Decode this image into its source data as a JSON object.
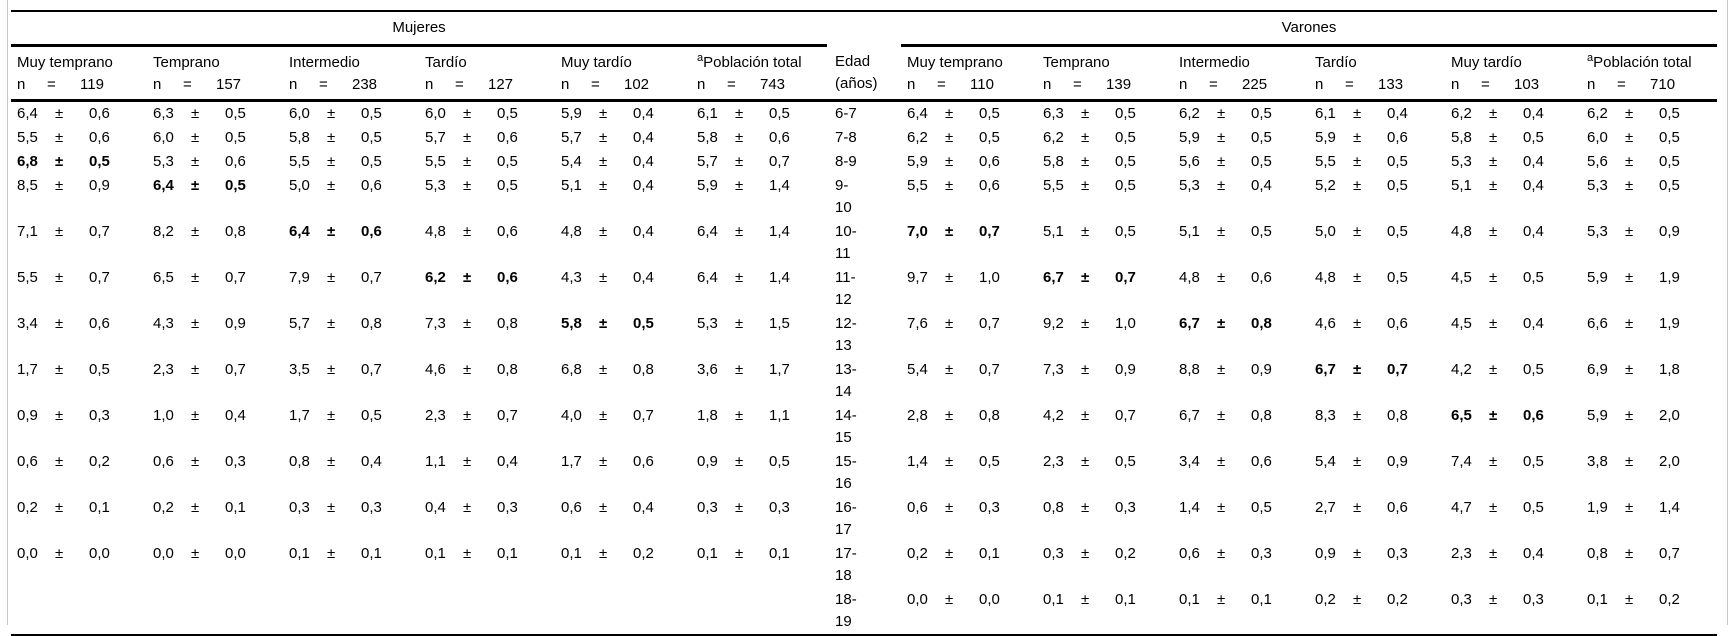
{
  "colors": {
    "text": "#000000",
    "background": "#ffffff",
    "rule": "#000000",
    "frame": "#c9c9c9"
  },
  "table": {
    "n_label": "n",
    "eq_label": "=",
    "pm_sign": "±",
    "groups": [
      {
        "label": "Mujeres"
      },
      {
        "label": "Varones"
      }
    ],
    "edad_header": {
      "line1": "Edad",
      "line2": "(años)"
    },
    "columns": [
      {
        "group": "mujeres",
        "sup": "",
        "name": "Muy temprano",
        "n": "119"
      },
      {
        "group": "mujeres",
        "sup": "",
        "name": "Temprano",
        "n": "157"
      },
      {
        "group": "mujeres",
        "sup": "",
        "name": "Intermedio",
        "n": "238"
      },
      {
        "group": "mujeres",
        "sup": "",
        "name": "Tardío",
        "n": "127"
      },
      {
        "group": "mujeres",
        "sup": "",
        "name": "Muy tardío",
        "n": "102"
      },
      {
        "group": "mujeres",
        "sup": "a",
        "name": "Población total",
        "n": "743"
      },
      {
        "group": "varones",
        "sup": "",
        "name": "Muy temprano",
        "n": "110"
      },
      {
        "group": "varones",
        "sup": "",
        "name": "Temprano",
        "n": "139"
      },
      {
        "group": "varones",
        "sup": "",
        "name": "Intermedio",
        "n": "225"
      },
      {
        "group": "varones",
        "sup": "",
        "name": "Tardío",
        "n": "133"
      },
      {
        "group": "varones",
        "sup": "",
        "name": "Muy tardío",
        "n": "103"
      },
      {
        "group": "varones",
        "sup": "a",
        "name": "Población total",
        "n": "710"
      }
    ],
    "rows": [
      {
        "edad": [
          "6-7"
        ],
        "cells": [
          {
            "v": "6,4",
            "e": "0,6"
          },
          {
            "v": "6,3",
            "e": "0,5"
          },
          {
            "v": "6,0",
            "e": "0,5"
          },
          {
            "v": "6,0",
            "e": "0,5"
          },
          {
            "v": "5,9",
            "e": "0,4"
          },
          {
            "v": "6,1",
            "e": "0,5"
          },
          {
            "v": "6,4",
            "e": "0,5"
          },
          {
            "v": "6,3",
            "e": "0,5"
          },
          {
            "v": "6,2",
            "e": "0,5"
          },
          {
            "v": "6,1",
            "e": "0,4"
          },
          {
            "v": "6,2",
            "e": "0,4"
          },
          {
            "v": "6,2",
            "e": "0,5"
          }
        ]
      },
      {
        "edad": [
          "7-8"
        ],
        "cells": [
          {
            "v": "5,5",
            "e": "0,6"
          },
          {
            "v": "6,0",
            "e": "0,5"
          },
          {
            "v": "5,8",
            "e": "0,5"
          },
          {
            "v": "5,7",
            "e": "0,6"
          },
          {
            "v": "5,7",
            "e": "0,4"
          },
          {
            "v": "5,8",
            "e": "0,6"
          },
          {
            "v": "6,2",
            "e": "0,5"
          },
          {
            "v": "6,2",
            "e": "0,5"
          },
          {
            "v": "5,9",
            "e": "0,5"
          },
          {
            "v": "5,9",
            "e": "0,6"
          },
          {
            "v": "5,8",
            "e": "0,5"
          },
          {
            "v": "6,0",
            "e": "0,5"
          }
        ]
      },
      {
        "edad": [
          "8-9"
        ],
        "cells": [
          {
            "v": "6,8",
            "e": "0,5",
            "b": 1
          },
          {
            "v": "5,3",
            "e": "0,6"
          },
          {
            "v": "5,5",
            "e": "0,5"
          },
          {
            "v": "5,5",
            "e": "0,5"
          },
          {
            "v": "5,4",
            "e": "0,4"
          },
          {
            "v": "5,7",
            "e": "0,7"
          },
          {
            "v": "5,9",
            "e": "0,6"
          },
          {
            "v": "5,8",
            "e": "0,5"
          },
          {
            "v": "5,6",
            "e": "0,5"
          },
          {
            "v": "5,5",
            "e": "0,5"
          },
          {
            "v": "5,3",
            "e": "0,4"
          },
          {
            "v": "5,6",
            "e": "0,5"
          }
        ]
      },
      {
        "edad": [
          "9-",
          "10"
        ],
        "cells": [
          {
            "v": "8,5",
            "e": "0,9"
          },
          {
            "v": "6,4",
            "e": "0,5",
            "b": 1
          },
          {
            "v": "5,0",
            "e": "0,6"
          },
          {
            "v": "5,3",
            "e": "0,5"
          },
          {
            "v": "5,1",
            "e": "0,4"
          },
          {
            "v": "5,9",
            "e": "1,4"
          },
          {
            "v": "5,5",
            "e": "0,6"
          },
          {
            "v": "5,5",
            "e": "0,5"
          },
          {
            "v": "5,3",
            "e": "0,4"
          },
          {
            "v": "5,2",
            "e": "0,5"
          },
          {
            "v": "5,1",
            "e": "0,4"
          },
          {
            "v": "5,3",
            "e": "0,5"
          }
        ]
      },
      {
        "edad": [
          "10-",
          "11"
        ],
        "cells": [
          {
            "v": "7,1",
            "e": "0,7"
          },
          {
            "v": "8,2",
            "e": "0,8"
          },
          {
            "v": "6,4",
            "e": "0,6",
            "b": 1
          },
          {
            "v": "4,8",
            "e": "0,6"
          },
          {
            "v": "4,8",
            "e": "0,4"
          },
          {
            "v": "6,4",
            "e": "1,4"
          },
          {
            "v": "7,0",
            "e": "0,7",
            "b": 1
          },
          {
            "v": "5,1",
            "e": "0,5"
          },
          {
            "v": "5,1",
            "e": "0,5"
          },
          {
            "v": "5,0",
            "e": "0,5"
          },
          {
            "v": "4,8",
            "e": "0,4"
          },
          {
            "v": "5,3",
            "e": "0,9"
          }
        ]
      },
      {
        "edad": [
          "11-",
          "12"
        ],
        "cells": [
          {
            "v": "5,5",
            "e": "0,7"
          },
          {
            "v": "6,5",
            "e": "0,7"
          },
          {
            "v": "7,9",
            "e": "0,7"
          },
          {
            "v": "6,2",
            "e": "0,6",
            "b": 1
          },
          {
            "v": "4,3",
            "e": "0,4"
          },
          {
            "v": "6,4",
            "e": "1,4"
          },
          {
            "v": "9,7",
            "e": "1,0"
          },
          {
            "v": "6,7",
            "e": "0,7",
            "b": 1
          },
          {
            "v": "4,8",
            "e": "0,6"
          },
          {
            "v": "4,8",
            "e": "0,5"
          },
          {
            "v": "4,5",
            "e": "0,5"
          },
          {
            "v": "5,9",
            "e": "1,9"
          }
        ]
      },
      {
        "edad": [
          "12-",
          "13"
        ],
        "cells": [
          {
            "v": "3,4",
            "e": "0,6"
          },
          {
            "v": "4,3",
            "e": "0,9"
          },
          {
            "v": "5,7",
            "e": "0,8"
          },
          {
            "v": "7,3",
            "e": "0,8"
          },
          {
            "v": "5,8",
            "e": "0,5",
            "b": 1
          },
          {
            "v": "5,3",
            "e": "1,5"
          },
          {
            "v": "7,6",
            "e": "0,7"
          },
          {
            "v": "9,2",
            "e": "1,0"
          },
          {
            "v": "6,7",
            "e": "0,8",
            "b": 1
          },
          {
            "v": "4,6",
            "e": "0,6"
          },
          {
            "v": "4,5",
            "e": "0,4"
          },
          {
            "v": "6,6",
            "e": "1,9"
          }
        ]
      },
      {
        "edad": [
          "13-",
          "14"
        ],
        "cells": [
          {
            "v": "1,7",
            "e": "0,5"
          },
          {
            "v": "2,3",
            "e": "0,7"
          },
          {
            "v": "3,5",
            "e": "0,7"
          },
          {
            "v": "4,6",
            "e": "0,8"
          },
          {
            "v": "6,8",
            "e": "0,8"
          },
          {
            "v": "3,6",
            "e": "1,7"
          },
          {
            "v": "5,4",
            "e": "0,7"
          },
          {
            "v": "7,3",
            "e": "0,9"
          },
          {
            "v": "8,8",
            "e": "0,9"
          },
          {
            "v": "6,7",
            "e": "0,7",
            "b": 1
          },
          {
            "v": "4,2",
            "e": "0,5"
          },
          {
            "v": "6,9",
            "e": "1,8"
          }
        ]
      },
      {
        "edad": [
          "14-",
          "15"
        ],
        "cells": [
          {
            "v": "0,9",
            "e": "0,3"
          },
          {
            "v": "1,0",
            "e": "0,4"
          },
          {
            "v": "1,7",
            "e": "0,5"
          },
          {
            "v": "2,3",
            "e": "0,7"
          },
          {
            "v": "4,0",
            "e": "0,7"
          },
          {
            "v": "1,8",
            "e": "1,1"
          },
          {
            "v": "2,8",
            "e": "0,8"
          },
          {
            "v": "4,2",
            "e": "0,7"
          },
          {
            "v": "6,7",
            "e": "0,8"
          },
          {
            "v": "8,3",
            "e": "0,8"
          },
          {
            "v": "6,5",
            "e": "0,6",
            "b": 1
          },
          {
            "v": "5,9",
            "e": "2,0"
          }
        ]
      },
      {
        "edad": [
          "15-",
          "16"
        ],
        "cells": [
          {
            "v": "0,6",
            "e": "0,2"
          },
          {
            "v": "0,6",
            "e": "0,3"
          },
          {
            "v": "0,8",
            "e": "0,4"
          },
          {
            "v": "1,1",
            "e": "0,4"
          },
          {
            "v": "1,7",
            "e": "0,6"
          },
          {
            "v": "0,9",
            "e": "0,5"
          },
          {
            "v": "1,4",
            "e": "0,5"
          },
          {
            "v": "2,3",
            "e": "0,5"
          },
          {
            "v": "3,4",
            "e": "0,6"
          },
          {
            "v": "5,4",
            "e": "0,9"
          },
          {
            "v": "7,4",
            "e": "0,5"
          },
          {
            "v": "3,8",
            "e": "2,0"
          }
        ]
      },
      {
        "edad": [
          "16-",
          "17"
        ],
        "cells": [
          {
            "v": "0,2",
            "e": "0,1"
          },
          {
            "v": "0,2",
            "e": "0,1"
          },
          {
            "v": "0,3",
            "e": "0,3"
          },
          {
            "v": "0,4",
            "e": "0,3"
          },
          {
            "v": "0,6",
            "e": "0,4"
          },
          {
            "v": "0,3",
            "e": "0,3"
          },
          {
            "v": "0,6",
            "e": "0,3"
          },
          {
            "v": "0,8",
            "e": "0,3"
          },
          {
            "v": "1,4",
            "e": "0,5"
          },
          {
            "v": "2,7",
            "e": "0,6"
          },
          {
            "v": "4,7",
            "e": "0,5"
          },
          {
            "v": "1,9",
            "e": "1,4"
          }
        ]
      },
      {
        "edad": [
          "17-",
          "18"
        ],
        "cells": [
          {
            "v": "0,0",
            "e": "0,0"
          },
          {
            "v": "0,0",
            "e": "0,0"
          },
          {
            "v": "0,1",
            "e": "0,1"
          },
          {
            "v": "0,1",
            "e": "0,1"
          },
          {
            "v": "0,1",
            "e": "0,2"
          },
          {
            "v": "0,1",
            "e": "0,1"
          },
          {
            "v": "0,2",
            "e": "0,1"
          },
          {
            "v": "0,3",
            "e": "0,2"
          },
          {
            "v": "0,6",
            "e": "0,3"
          },
          {
            "v": "0,9",
            "e": "0,3"
          },
          {
            "v": "2,3",
            "e": "0,4"
          },
          {
            "v": "0,8",
            "e": "0,7"
          }
        ]
      },
      {
        "edad": [
          "18-",
          "19"
        ],
        "cells": [
          null,
          null,
          null,
          null,
          null,
          null,
          {
            "v": "0,0",
            "e": "0,0"
          },
          {
            "v": "0,1",
            "e": "0,1"
          },
          {
            "v": "0,1",
            "e": "0,1"
          },
          {
            "v": "0,2",
            "e": "0,2"
          },
          {
            "v": "0,3",
            "e": "0,3"
          },
          {
            "v": "0,1",
            "e": "0,2"
          }
        ]
      }
    ]
  }
}
